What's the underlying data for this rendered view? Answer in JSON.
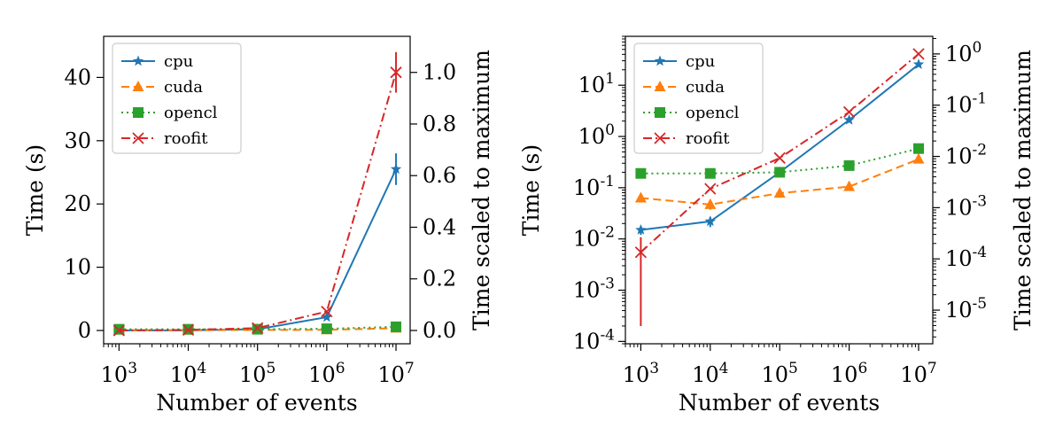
{
  "chart_data": [
    {
      "type": "line",
      "xscale": "log",
      "yscale": "linear",
      "x": [
        1000,
        10000,
        100000,
        1000000,
        10000000
      ],
      "xticks": [
        1000,
        10000,
        100000,
        1000000,
        10000000
      ],
      "xlim": [
        600,
        16000000
      ],
      "xlabel": "Number of events",
      "ylabel": "Time (s)",
      "ylim": [
        -2.1,
        46.5
      ],
      "yticks": [
        0,
        10,
        20,
        30,
        40
      ],
      "y2label": "Time scaled to maximum",
      "y2ticks": [
        0.0,
        0.2,
        0.4,
        0.6,
        0.8,
        1.0
      ],
      "y2ticklabels": [
        "0.0",
        "0.2",
        "0.4",
        "0.6",
        "0.8",
        "1.0"
      ],
      "legend": "top-left",
      "grid": false,
      "series": [
        {
          "name": "cpu",
          "color": "#1f77b4",
          "linestyle": "solid",
          "marker": "star",
          "values": [
            0.015,
            0.022,
            0.2,
            2.1,
            25.5
          ],
          "errors": [
            0,
            0,
            0,
            0,
            2.5
          ]
        },
        {
          "name": "cuda",
          "color": "#ff7f0e",
          "linestyle": "dashed",
          "marker": "triangle",
          "values": [
            0.063,
            0.047,
            0.078,
            0.105,
            0.36
          ],
          "errors": [
            0,
            0,
            0,
            0,
            0
          ]
        },
        {
          "name": "opencl",
          "color": "#2ca02c",
          "linestyle": "dotted",
          "marker": "square",
          "values": [
            0.19,
            0.19,
            0.2,
            0.27,
            0.58
          ],
          "errors": [
            0,
            0,
            0,
            0,
            0
          ]
        },
        {
          "name": "roofit",
          "color": "#d62728",
          "linestyle": "dashdot",
          "marker": "x",
          "values": [
            0.0055,
            0.095,
            0.38,
            3.0,
            40.8
          ],
          "errors": [
            0,
            0,
            0,
            0,
            3.2
          ]
        }
      ]
    },
    {
      "type": "line",
      "xscale": "log",
      "yscale": "log",
      "x": [
        1000,
        10000,
        100000,
        1000000,
        10000000
      ],
      "xticks": [
        1000,
        10000,
        100000,
        1000000,
        10000000
      ],
      "xlim": [
        600,
        16000000
      ],
      "xlabel": "Number of events",
      "ylabel": "Time (s)",
      "ylim": [
        9e-05,
        90
      ],
      "yticks": [
        0.0001,
        0.001,
        0.01,
        0.1,
        1,
        10
      ],
      "y2label": "Time scaled to maximum",
      "y2ticks": [
        1e-05,
        0.0001,
        0.001,
        0.01,
        0.1,
        1
      ],
      "legend": "top-left",
      "grid": false,
      "series": [
        {
          "name": "cpu",
          "color": "#1f77b4",
          "linestyle": "solid",
          "marker": "star",
          "values": [
            0.015,
            0.022,
            0.2,
            2.1,
            25.5
          ],
          "errors": [
            0.003,
            0.005,
            0,
            0,
            0
          ]
        },
        {
          "name": "cuda",
          "color": "#ff7f0e",
          "linestyle": "dashed",
          "marker": "triangle",
          "values": [
            0.063,
            0.047,
            0.078,
            0.105,
            0.36
          ],
          "errors": [
            0,
            0.01,
            0,
            0,
            0
          ]
        },
        {
          "name": "opencl",
          "color": "#2ca02c",
          "linestyle": "dotted",
          "marker": "square",
          "values": [
            0.19,
            0.19,
            0.2,
            0.27,
            0.58
          ],
          "errors": [
            0,
            0,
            0,
            0,
            0
          ]
        },
        {
          "name": "roofit",
          "color": "#d62728",
          "linestyle": "dashdot",
          "marker": "x",
          "values": [
            0.0055,
            0.095,
            0.38,
            3.0,
            40.8
          ],
          "errors": [
            0.0053,
            0,
            0,
            0,
            0
          ]
        }
      ]
    }
  ]
}
